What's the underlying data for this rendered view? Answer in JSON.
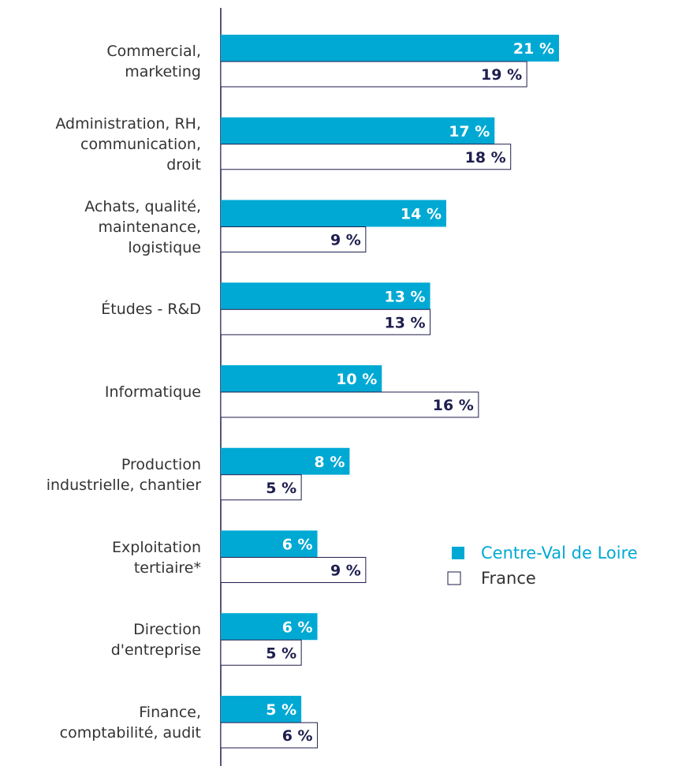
{
  "chart_data": {
    "type": "bar",
    "orientation": "horizontal",
    "categories": [
      "Commercial,\nmarketing",
      "Administration, RH,\ncommunication,\ndroit",
      "Achats, qualité,\nmaintenance,\nlogistique",
      "Études - R&D",
      "Informatique",
      "Production\nindustrielle, chantier",
      "Exploitation\ntertiaire*",
      "Direction\nd'entreprise",
      "Finance,\ncomptabilité, audit"
    ],
    "series": [
      {
        "name": "Centre-Val de Loire",
        "color": "#00a9d4",
        "values": [
          21,
          17,
          14,
          13,
          10,
          8,
          6,
          6,
          5
        ],
        "value_labels": [
          "21 %",
          "17 %",
          "14 %",
          "13 %",
          "10 %",
          "8 %",
          "6 %",
          "6 %",
          "5 %"
        ]
      },
      {
        "name": "France",
        "color": "#ffffff",
        "values": [
          19,
          18,
          9,
          13,
          16,
          5,
          9,
          5,
          6
        ],
        "value_labels": [
          "19 %",
          "18 %",
          "9 %",
          "13 %",
          "16 %",
          "5 %",
          "9 %",
          "5 %",
          "6 %"
        ]
      }
    ]
  }
}
